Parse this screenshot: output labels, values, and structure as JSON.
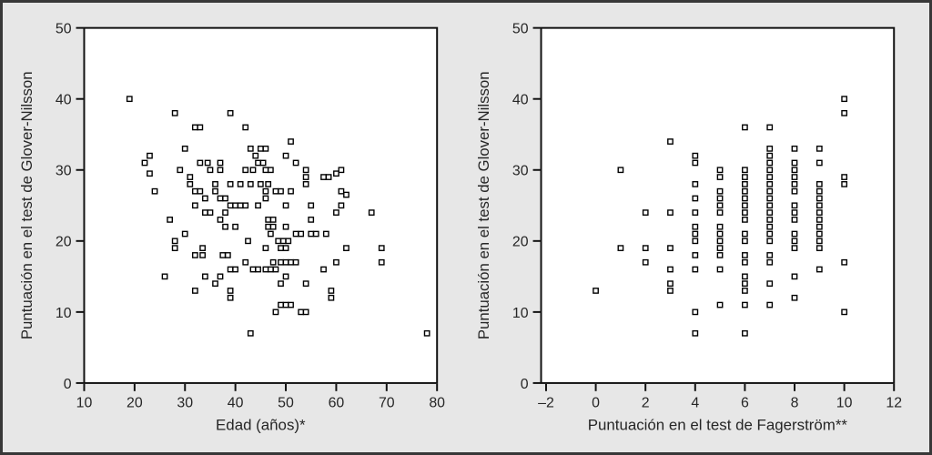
{
  "figure": {
    "background": "#e7e7e7",
    "frame_color": "#383838",
    "plot_background": "#ffffff",
    "axis_color": "#111111",
    "text_color": "#262626",
    "marker": {
      "shape": "open-square",
      "fill": "#ffffff",
      "stroke": "#000000",
      "size": 5.4,
      "stroke_width": 1.4
    }
  },
  "chart_data": [
    {
      "type": "scatter",
      "title": "",
      "xlabel": "Edad (años)*",
      "ylabel": "Puntuación en el test de Glover-Nilsson",
      "xlim": [
        10,
        80
      ],
      "ylim": [
        0,
        50
      ],
      "xticks": [
        10,
        20,
        30,
        40,
        50,
        60,
        70,
        80
      ],
      "xtick_labels": [
        "10",
        "20",
        "30",
        "40",
        "50",
        "60",
        "70",
        "80"
      ],
      "yticks": [
        0,
        10,
        20,
        30,
        40,
        50
      ],
      "ytick_labels": [
        "0",
        "10",
        "20",
        "30",
        "40",
        "50"
      ],
      "grid": false,
      "legend": null,
      "points": [
        [
          19,
          40
        ],
        [
          28,
          38
        ],
        [
          39,
          38
        ],
        [
          32,
          36
        ],
        [
          33,
          36
        ],
        [
          42,
          36
        ],
        [
          51,
          34
        ],
        [
          30,
          33
        ],
        [
          43,
          33
        ],
        [
          45,
          33
        ],
        [
          46,
          33
        ],
        [
          23,
          32
        ],
        [
          44,
          32
        ],
        [
          50,
          32
        ],
        [
          22,
          31
        ],
        [
          33,
          31
        ],
        [
          34.5,
          31
        ],
        [
          37,
          31
        ],
        [
          44.5,
          31
        ],
        [
          45.5,
          31
        ],
        [
          52,
          31
        ],
        [
          23,
          29.5
        ],
        [
          29,
          30
        ],
        [
          35,
          30
        ],
        [
          37,
          30
        ],
        [
          42,
          30
        ],
        [
          43.5,
          30
        ],
        [
          46,
          30
        ],
        [
          47,
          30
        ],
        [
          54,
          30
        ],
        [
          60,
          29.5
        ],
        [
          61,
          30
        ],
        [
          31,
          29
        ],
        [
          54,
          29
        ],
        [
          57.5,
          29
        ],
        [
          58.5,
          29
        ],
        [
          24,
          27
        ],
        [
          31,
          28
        ],
        [
          36,
          28
        ],
        [
          39,
          28
        ],
        [
          41,
          28
        ],
        [
          43,
          28
        ],
        [
          45,
          28
        ],
        [
          46.5,
          28
        ],
        [
          54,
          28
        ],
        [
          32,
          27
        ],
        [
          33,
          27
        ],
        [
          36,
          27
        ],
        [
          46,
          27
        ],
        [
          48,
          27
        ],
        [
          49,
          27
        ],
        [
          51,
          27
        ],
        [
          61,
          27
        ],
        [
          62,
          26.5
        ],
        [
          34,
          26
        ],
        [
          37,
          26
        ],
        [
          38,
          26
        ],
        [
          46,
          26
        ],
        [
          32,
          25
        ],
        [
          39,
          25
        ],
        [
          40,
          25
        ],
        [
          41,
          25
        ],
        [
          42,
          25
        ],
        [
          44.5,
          25
        ],
        [
          50,
          25
        ],
        [
          55,
          25
        ],
        [
          61,
          25
        ],
        [
          34,
          24
        ],
        [
          35,
          24
        ],
        [
          38,
          24
        ],
        [
          60,
          24
        ],
        [
          67,
          24
        ],
        [
          27,
          23
        ],
        [
          37,
          23
        ],
        [
          46.5,
          23
        ],
        [
          47.5,
          23
        ],
        [
          55,
          23
        ],
        [
          38,
          22
        ],
        [
          40,
          22
        ],
        [
          46.5,
          22
        ],
        [
          47.5,
          22
        ],
        [
          50,
          22
        ],
        [
          30,
          21
        ],
        [
          47,
          21
        ],
        [
          52,
          21
        ],
        [
          53,
          21
        ],
        [
          55,
          21
        ],
        [
          56,
          21
        ],
        [
          58,
          21
        ],
        [
          28,
          20
        ],
        [
          42.5,
          20
        ],
        [
          48.5,
          20
        ],
        [
          49.5,
          20
        ],
        [
          50.5,
          20
        ],
        [
          28,
          19
        ],
        [
          33.5,
          19
        ],
        [
          46,
          19
        ],
        [
          49,
          19
        ],
        [
          50,
          19
        ],
        [
          62,
          19
        ],
        [
          69,
          19
        ],
        [
          32,
          18
        ],
        [
          33.5,
          18
        ],
        [
          37.5,
          18
        ],
        [
          38.5,
          18
        ],
        [
          42,
          17
        ],
        [
          47.5,
          17
        ],
        [
          49,
          17
        ],
        [
          50,
          17
        ],
        [
          51,
          17
        ],
        [
          52,
          17
        ],
        [
          60,
          17
        ],
        [
          69,
          17
        ],
        [
          39,
          16
        ],
        [
          40,
          16
        ],
        [
          43.5,
          16
        ],
        [
          44.5,
          16
        ],
        [
          46,
          16
        ],
        [
          47,
          16
        ],
        [
          48,
          16
        ],
        [
          57.5,
          16
        ],
        [
          26,
          15
        ],
        [
          34,
          15
        ],
        [
          37,
          15
        ],
        [
          50,
          15
        ],
        [
          36,
          14
        ],
        [
          49,
          14
        ],
        [
          54,
          14
        ],
        [
          32,
          13
        ],
        [
          39,
          13
        ],
        [
          59,
          13
        ],
        [
          39,
          12
        ],
        [
          59,
          12
        ],
        [
          49,
          11
        ],
        [
          50,
          11
        ],
        [
          51,
          11
        ],
        [
          48,
          10
        ],
        [
          53,
          10
        ],
        [
          54,
          10
        ],
        [
          43,
          7
        ],
        [
          78,
          7
        ]
      ]
    },
    {
      "type": "scatter",
      "title": "",
      "xlabel": "Puntuación en el test de Fagerström**",
      "ylabel": "Puntuación en el test de Glover-Nilsson",
      "xlim": [
        -2.2,
        12
      ],
      "ylim": [
        0,
        50
      ],
      "xticks": [
        -2,
        0,
        2,
        4,
        6,
        8,
        10,
        12
      ],
      "xtick_labels": [
        "–2",
        "0",
        "2",
        "4",
        "6",
        "8",
        "10",
        "12"
      ],
      "yticks": [
        0,
        10,
        20,
        30,
        40,
        50
      ],
      "ytick_labels": [
        "0",
        "10",
        "20",
        "30",
        "40",
        "50"
      ],
      "grid": false,
      "legend": null,
      "points": [
        [
          0,
          13
        ],
        [
          1,
          30
        ],
        [
          1,
          19
        ],
        [
          2,
          24
        ],
        [
          2,
          19
        ],
        [
          2,
          17
        ],
        [
          3,
          34
        ],
        [
          3,
          24
        ],
        [
          3,
          19
        ],
        [
          3,
          16
        ],
        [
          3,
          14
        ],
        [
          3,
          13
        ],
        [
          4,
          32
        ],
        [
          4,
          31
        ],
        [
          4,
          28
        ],
        [
          4,
          26
        ],
        [
          4,
          24
        ],
        [
          4,
          22
        ],
        [
          4,
          21
        ],
        [
          4,
          20
        ],
        [
          4,
          18
        ],
        [
          4,
          16
        ],
        [
          4,
          10
        ],
        [
          4,
          7
        ],
        [
          5,
          30
        ],
        [
          5,
          29
        ],
        [
          5,
          27
        ],
        [
          5,
          26
        ],
        [
          5,
          25
        ],
        [
          5,
          24
        ],
        [
          5,
          22
        ],
        [
          5,
          21
        ],
        [
          5,
          20
        ],
        [
          5,
          19
        ],
        [
          5,
          18
        ],
        [
          5,
          16
        ],
        [
          5,
          11
        ],
        [
          6,
          36
        ],
        [
          6,
          30
        ],
        [
          6,
          29
        ],
        [
          6,
          28
        ],
        [
          6,
          27
        ],
        [
          6,
          26
        ],
        [
          6,
          25
        ],
        [
          6,
          24
        ],
        [
          6,
          23
        ],
        [
          6,
          21
        ],
        [
          6,
          20
        ],
        [
          6,
          18
        ],
        [
          6,
          17
        ],
        [
          6,
          15
        ],
        [
          6,
          14
        ],
        [
          6,
          13
        ],
        [
          6,
          11
        ],
        [
          6,
          7
        ],
        [
          7,
          36
        ],
        [
          7,
          33
        ],
        [
          7,
          32
        ],
        [
          7,
          31
        ],
        [
          7,
          30
        ],
        [
          7,
          29
        ],
        [
          7,
          28
        ],
        [
          7,
          27
        ],
        [
          7,
          26
        ],
        [
          7,
          25
        ],
        [
          7,
          24
        ],
        [
          7,
          23
        ],
        [
          7,
          22
        ],
        [
          7,
          21
        ],
        [
          7,
          20
        ],
        [
          7,
          18
        ],
        [
          7,
          17
        ],
        [
          7,
          14
        ],
        [
          7,
          11
        ],
        [
          8,
          33
        ],
        [
          8,
          31
        ],
        [
          8,
          30
        ],
        [
          8,
          29
        ],
        [
          8,
          28
        ],
        [
          8,
          27
        ],
        [
          8,
          25
        ],
        [
          8,
          24
        ],
        [
          8,
          23
        ],
        [
          8,
          21
        ],
        [
          8,
          20
        ],
        [
          8,
          19
        ],
        [
          8,
          15
        ],
        [
          8,
          12
        ],
        [
          9,
          33
        ],
        [
          9,
          31
        ],
        [
          9,
          28
        ],
        [
          9,
          27
        ],
        [
          9,
          26
        ],
        [
          9,
          25
        ],
        [
          9,
          24
        ],
        [
          9,
          23
        ],
        [
          9,
          22
        ],
        [
          9,
          21
        ],
        [
          9,
          20
        ],
        [
          9,
          19
        ],
        [
          9,
          16
        ],
        [
          10,
          40
        ],
        [
          10,
          38
        ],
        [
          10,
          29
        ],
        [
          10,
          28
        ],
        [
          10,
          17
        ],
        [
          10,
          10
        ]
      ]
    }
  ]
}
